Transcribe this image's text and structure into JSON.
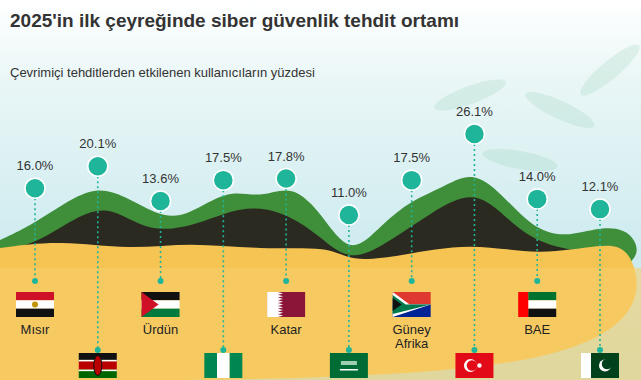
{
  "chart_data": {
    "type": "lollipop",
    "title": "2025'in ilk çeyreğinde siber güvenlik tehdit ortamı",
    "subtitle": "Çevrimiçi tehditlerden etkilenen kullanıcıların yüzdesi",
    "categories": [
      "Mısır",
      null,
      "Ürdün",
      null,
      "Katar",
      null,
      "Güney Afrika",
      null,
      "BAE",
      null
    ],
    "values": [
      16.0,
      20.1,
      13.6,
      17.5,
      17.8,
      11.0,
      17.5,
      26.1,
      14.0,
      12.1
    ],
    "value_labels": [
      "16.0%",
      "20.1%",
      "13.6%",
      "17.5%",
      "17.8%",
      "11.0%",
      "17.5%",
      "26.1%",
      "14.0%",
      "12.1%"
    ],
    "color": "#1fb59a",
    "data_labels": true,
    "tick_labels": false
  }
}
